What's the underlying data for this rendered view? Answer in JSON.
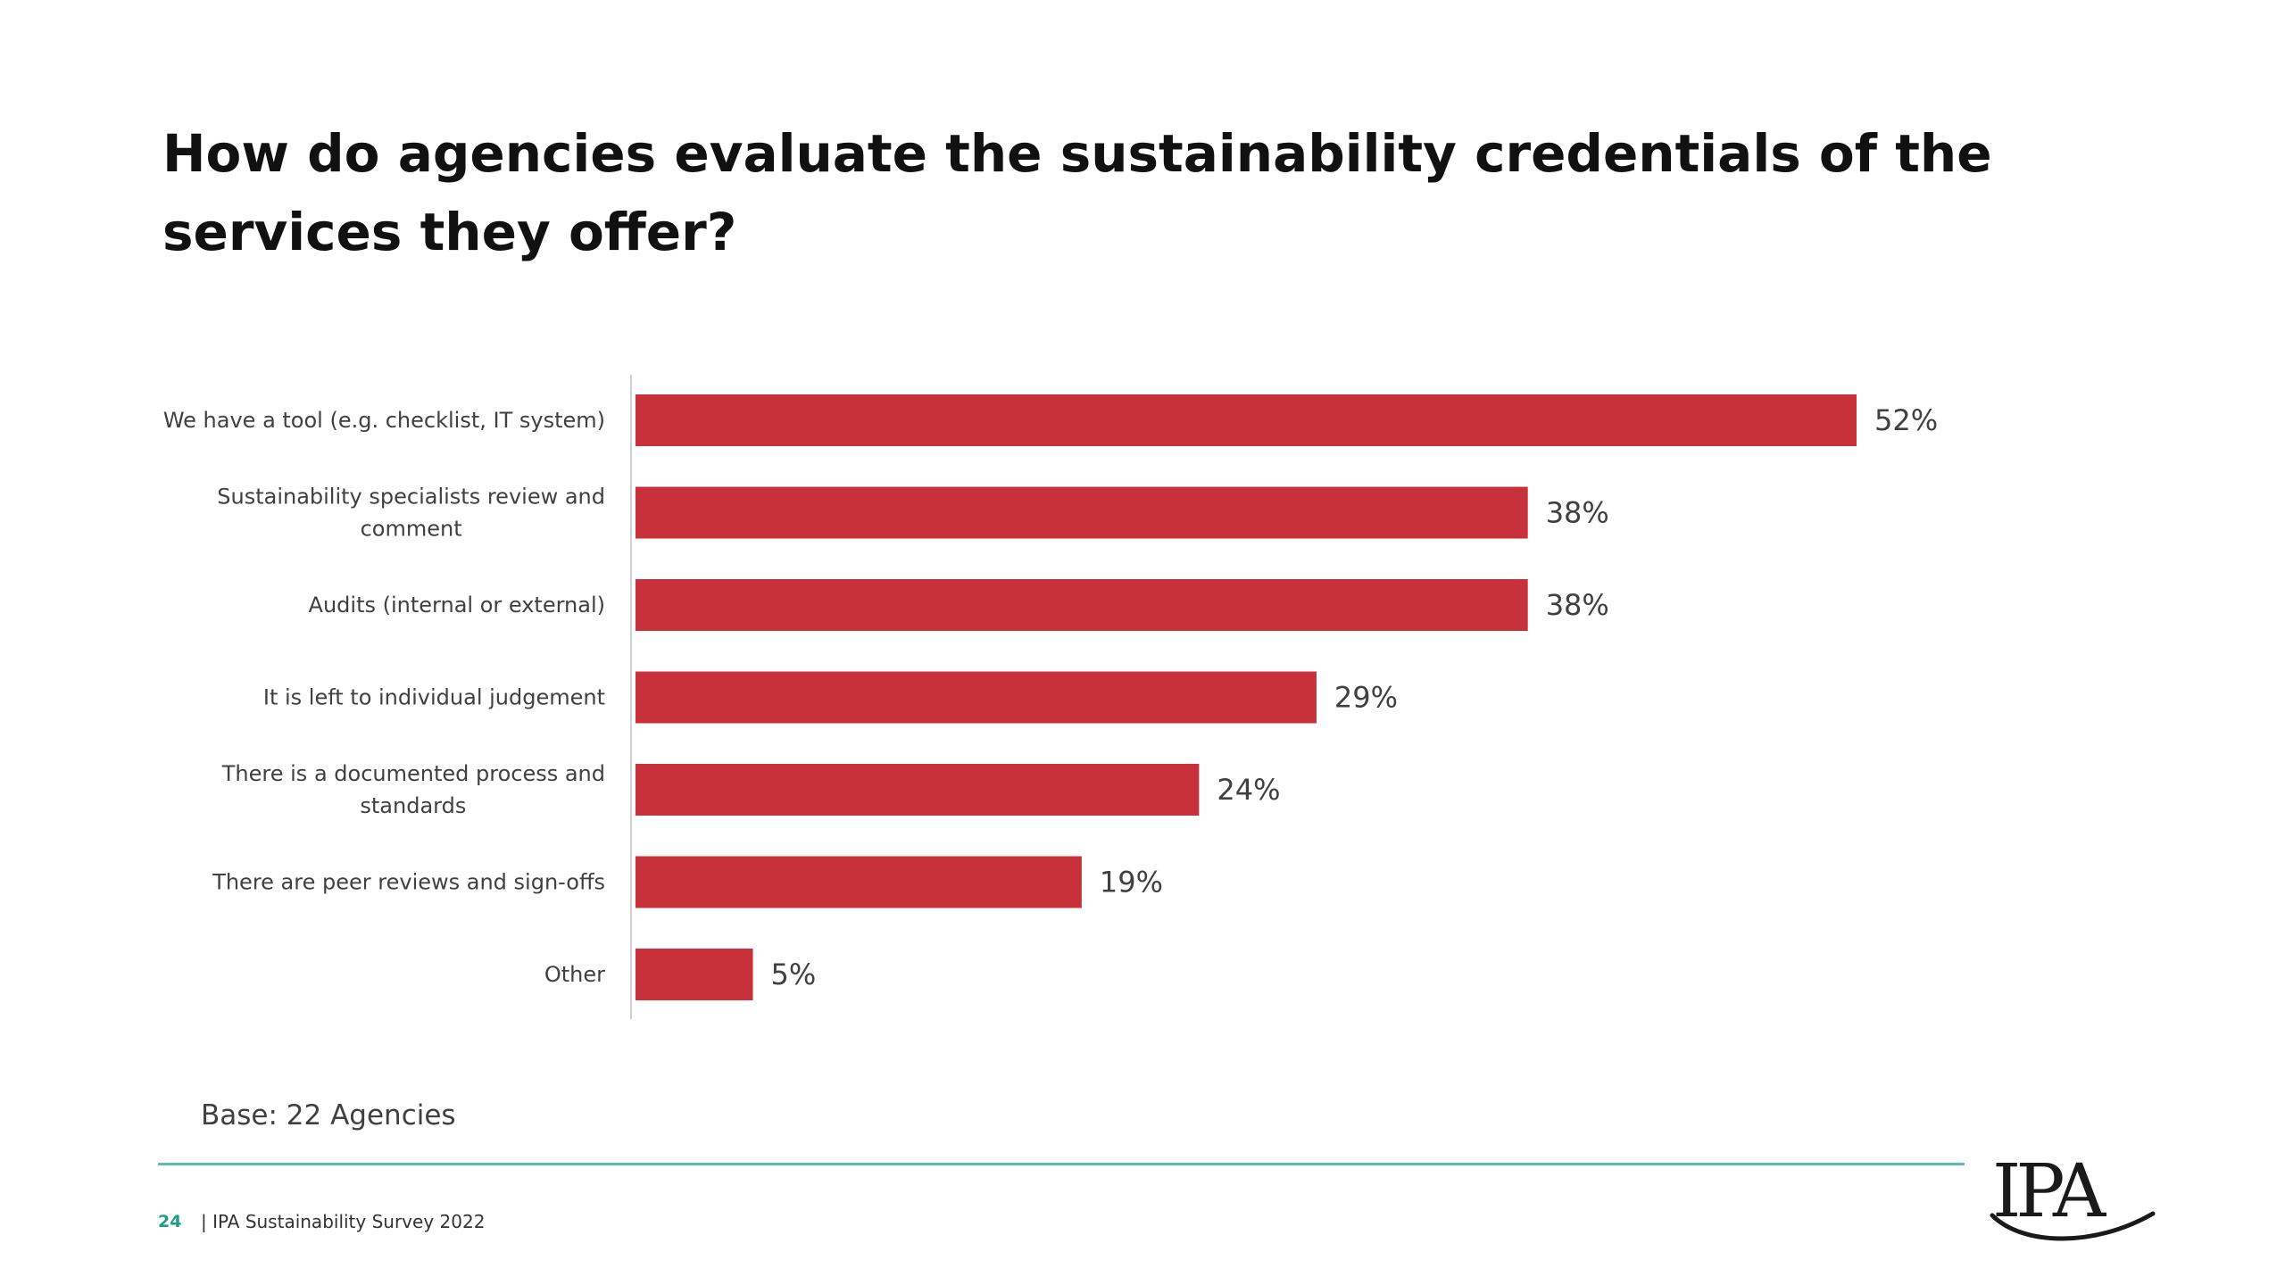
{
  "slide": {
    "title": "How do agencies evaluate the sustainability credentials of the services they  offer?",
    "base_note": "Base:  22 Agencies",
    "page_number": "24",
    "footer_text": "| IPA Sustainability Survey 2022",
    "logo_text": "IPA"
  },
  "colors": {
    "bar": "#c8313a",
    "axis": "#d0d0d0",
    "footer_rule": "#5fbfae",
    "page_number": "#1e9e86"
  },
  "chart_data": {
    "type": "bar",
    "orientation": "horizontal",
    "title": "",
    "xlabel": "",
    "ylabel": "",
    "xlim": [
      0,
      52
    ],
    "grid": false,
    "legend": "none",
    "categories": [
      "We have a tool (e.g. checklist, IT system)",
      "Sustainability specialists review and comment",
      "Audits (internal or external)",
      "It is left to individual judgement",
      "There is a documented process and standards",
      "There are peer reviews and sign-offs",
      "Other"
    ],
    "category_lines": [
      [
        "We have a tool (e.g. checklist, IT system)"
      ],
      [
        "Sustainability specialists review and",
        "comment"
      ],
      [
        "Audits (internal or external)"
      ],
      [
        "It is left to individual judgement"
      ],
      [
        "There is a documented process and",
        "standards"
      ],
      [
        "There are peer reviews and sign-offs"
      ],
      [
        "Other"
      ]
    ],
    "values": [
      52,
      38,
      38,
      29,
      24,
      19,
      5
    ],
    "value_labels": [
      "52%",
      "38%",
      "38%",
      "29%",
      "24%",
      "19%",
      "5%"
    ]
  }
}
